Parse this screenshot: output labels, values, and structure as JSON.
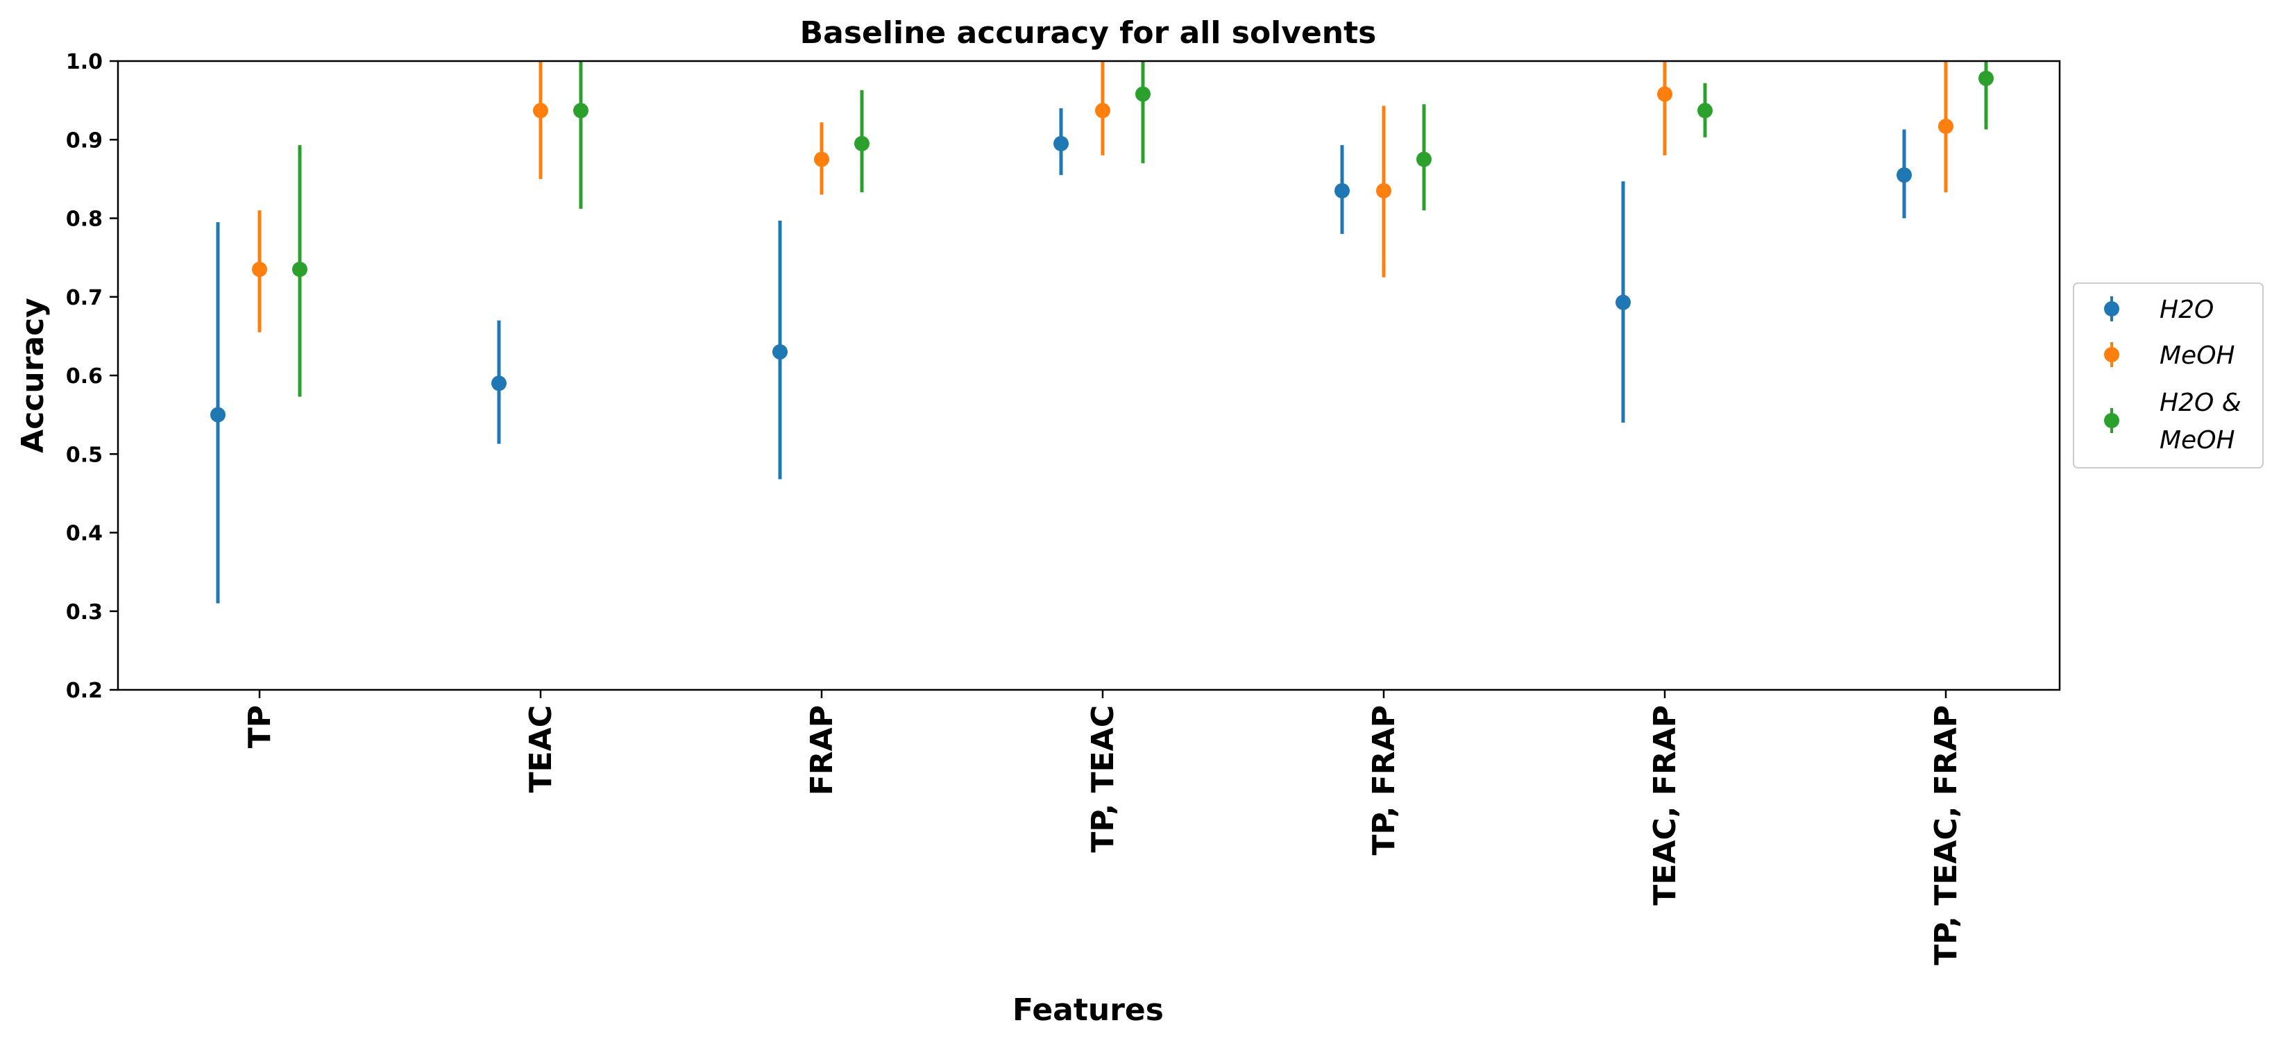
{
  "chart_data": {
    "type": "scatter",
    "title": "Baseline accuracy for all solvents",
    "xlabel": "Features",
    "ylabel": "Accuracy",
    "ylim": [
      0.2,
      1.0
    ],
    "yticks": [
      "0.2",
      "0.3",
      "0.4",
      "0.5",
      "0.6",
      "0.7",
      "0.8",
      "0.9",
      "1.0"
    ],
    "categories": [
      "TP",
      "TEAC",
      "FRAP",
      "TP, TEAC",
      "TP, FRAP",
      "TEAC, FRAP",
      "TP, TEAC, FRAP"
    ],
    "grid": false,
    "legend_position": "right",
    "series": [
      {
        "name": "H2O",
        "legend_lines": [
          "H2O"
        ],
        "color": "#1f77b4",
        "values": [
          0.55,
          0.59,
          0.63,
          0.895,
          0.835,
          0.693,
          0.855
        ],
        "err_low": [
          0.31,
          0.513,
          0.468,
          0.855,
          0.78,
          0.54,
          0.8
        ],
        "err_high": [
          0.795,
          0.67,
          0.797,
          0.94,
          0.893,
          0.847,
          0.913
        ]
      },
      {
        "name": "MeOH",
        "legend_lines": [
          "MeOH"
        ],
        "color": "#ff7f0e",
        "values": [
          0.735,
          0.937,
          0.875,
          0.937,
          0.835,
          0.958,
          0.917
        ],
        "err_low": [
          0.655,
          0.85,
          0.83,
          0.88,
          0.725,
          0.88,
          0.833
        ],
        "err_high": [
          0.81,
          1.0,
          0.922,
          1.0,
          0.943,
          1.0,
          1.0
        ]
      },
      {
        "name": "H2O & MeOH",
        "legend_lines": [
          "H2O &",
          "MeOH"
        ],
        "color": "#2ca02c",
        "values": [
          0.735,
          0.937,
          0.895,
          0.958,
          0.875,
          0.937,
          0.978
        ],
        "err_low": [
          0.573,
          0.812,
          0.833,
          0.87,
          0.81,
          0.903,
          0.913
        ],
        "err_high": [
          0.893,
          1.0,
          0.963,
          1.0,
          0.945,
          0.972,
          1.0
        ]
      }
    ]
  }
}
